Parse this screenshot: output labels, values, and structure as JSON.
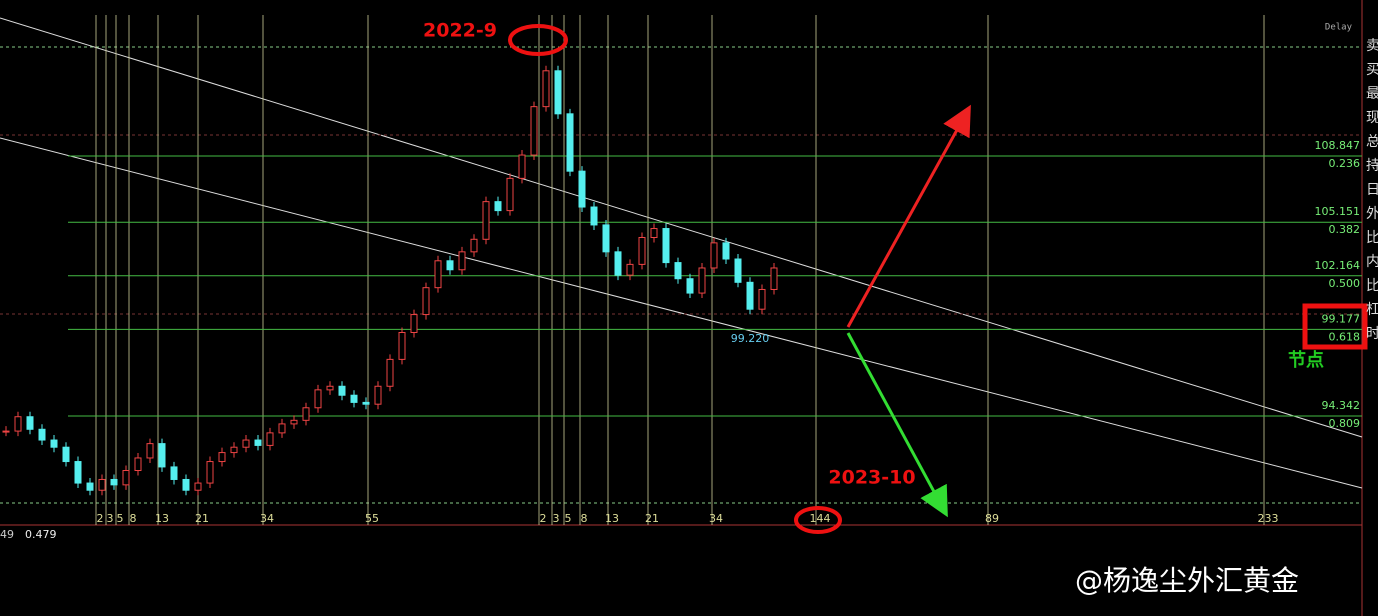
{
  "chart_data": {
    "type": "candlestick",
    "closes": [
      93.5,
      94.3,
      93.6,
      93.0,
      92.6,
      91.8,
      90.6,
      90.2,
      90.8,
      90.5,
      91.3,
      92.0,
      92.8,
      91.5,
      90.8,
      90.2,
      90.6,
      91.8,
      92.3,
      92.6,
      93.0,
      92.7,
      93.4,
      93.9,
      94.1,
      94.8,
      95.8,
      96.0,
      95.5,
      95.1,
      95.0,
      96.0,
      97.5,
      99.0,
      100.0,
      101.5,
      103.0,
      102.5,
      103.5,
      104.2,
      106.3,
      105.8,
      107.6,
      108.9,
      111.6,
      113.6,
      111.2,
      108.0,
      106.0,
      105.0,
      103.5,
      102.2,
      102.8,
      104.3,
      104.8,
      102.9,
      102.0,
      101.2,
      102.6,
      104.0,
      103.1,
      101.8,
      100.3,
      101.4,
      102.6
    ],
    "ylim": [
      88.26,
      117.55
    ],
    "fib_levels": [
      {
        "price": 108.847,
        "ratio": "0.236"
      },
      {
        "price": 105.151,
        "ratio": "0.382"
      },
      {
        "price": 102.164,
        "ratio": "0.500"
      },
      {
        "price": 99.177,
        "ratio": "0.618"
      },
      {
        "price": 94.342,
        "ratio": "0.809"
      }
    ],
    "time_labels": [
      "2",
      "3",
      "5",
      "8",
      "13",
      "21",
      "34",
      "55",
      "2",
      "3",
      "5",
      "8",
      "13",
      "21",
      "34",
      "144",
      "89",
      "233"
    ],
    "low_label": "99.220",
    "annotations": {
      "peak": "2022-9",
      "target": "2023-10",
      "node": "节点"
    },
    "status": "Delay",
    "indicator": [
      "49",
      "0.479"
    ],
    "side_panel": [
      "卖",
      "买",
      "最",
      "现",
      "总",
      "持",
      "日",
      "外",
      "比",
      "内",
      "比",
      "杠",
      "时"
    ],
    "watermark": "@杨逸尘外汇黄金"
  }
}
